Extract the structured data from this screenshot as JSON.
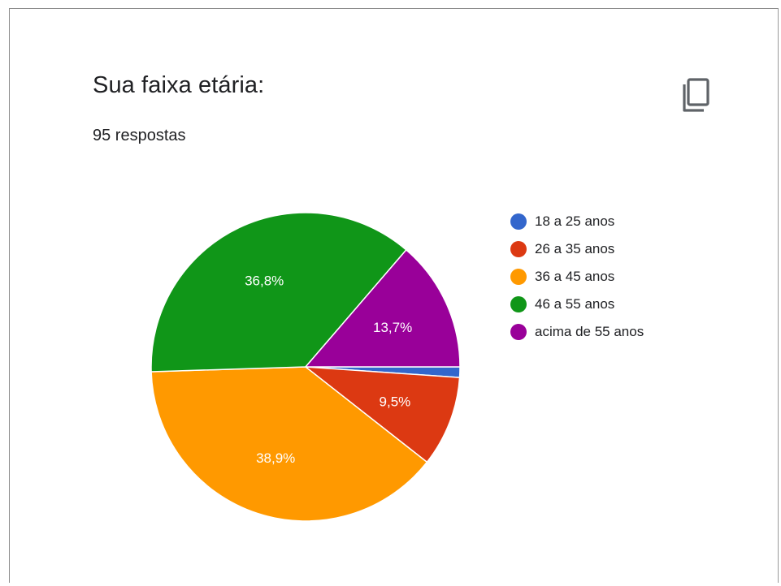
{
  "card": {
    "title": "Sua faixa etária:",
    "subtitle": "95 respostas",
    "copy_icon": "copy-icon"
  },
  "chart_data": {
    "type": "pie",
    "slices": [
      {
        "label": "18 a 25 anos",
        "value": 1.1,
        "value_label": "",
        "color": "#3366cc"
      },
      {
        "label": "26 a 35 anos",
        "value": 9.5,
        "value_label": "9,5%",
        "color": "#dc3912"
      },
      {
        "label": "36 a 45 anos",
        "value": 38.9,
        "value_label": "38,9%",
        "color": "#ff9900"
      },
      {
        "label": "46 a 55 anos",
        "value": 36.8,
        "value_label": "36,8%",
        "color": "#109618"
      },
      {
        "label": "acima de 55 anos",
        "value": 13.7,
        "value_label": "13,7%",
        "color": "#990099"
      }
    ],
    "start_angle_deg": 90,
    "direction": "clockwise",
    "legend_position": "right"
  }
}
